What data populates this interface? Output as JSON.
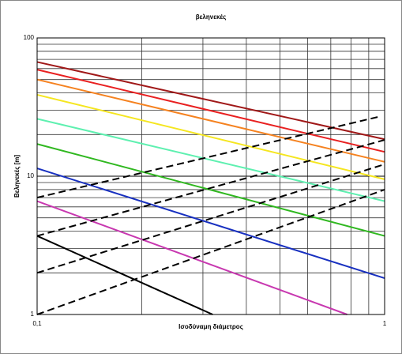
{
  "chart_data": {
    "type": "line",
    "title": "βεληνεκές",
    "xlabel": "Ισοδύναμη διάμετρος",
    "ylabel": "Βεληνεκές [m]",
    "xscale": "log",
    "yscale": "log",
    "grid": true,
    "xlim": [
      0.1,
      1
    ],
    "ylim": [
      1,
      100
    ],
    "xticks": [
      {
        "value": 0.1,
        "label": "0,1"
      },
      1
    ],
    "yticks": [
      1,
      10,
      100
    ],
    "xminorticks": [
      0.2,
      0.3,
      0.4,
      0.5,
      0.6,
      0.7,
      0.8,
      0.9
    ],
    "yminorticks": [
      2,
      3,
      4,
      5,
      6,
      7,
      8,
      9,
      20,
      30,
      40,
      50,
      60,
      70,
      80,
      90
    ],
    "series": [
      {
        "color": "#a01818",
        "x": [
          0.1,
          1
        ],
        "values": [
          67,
          18.5
        ]
      },
      {
        "color": "#e82020",
        "x": [
          0.1,
          1
        ],
        "values": [
          59,
          15
        ]
      },
      {
        "color": "#f58220",
        "x": [
          0.1,
          1
        ],
        "values": [
          50,
          12.7
        ]
      },
      {
        "color": "#f5e620",
        "x": [
          0.1,
          1
        ],
        "values": [
          38.8,
          9.5
        ]
      },
      {
        "color": "#5ef0b0",
        "x": [
          0.1,
          1
        ],
        "values": [
          26,
          6.6
        ]
      },
      {
        "color": "#30b820",
        "x": [
          0.1,
          1
        ],
        "values": [
          17.1,
          3.7
        ]
      },
      {
        "color": "#1830c0",
        "x": [
          0.1,
          1
        ],
        "values": [
          11.4,
          1.83
        ]
      },
      {
        "color": "#c838b0",
        "x": [
          0.1,
          0.78
        ],
        "values": [
          6.6,
          1
        ]
      },
      {
        "color": "#000000",
        "x": [
          0.1,
          0.32
        ],
        "values": [
          3.7,
          1
        ]
      },
      {
        "color": "#000000",
        "dash": true,
        "x": [
          0.1,
          0.955
        ],
        "values": [
          7,
          26.8
        ]
      },
      {
        "color": "#000000",
        "dash": true,
        "x": [
          0.1,
          1
        ],
        "values": [
          3.7,
          18.3
        ]
      },
      {
        "color": "#000000",
        "dash": true,
        "x": [
          0.1,
          1
        ],
        "values": [
          2,
          12.2
        ]
      },
      {
        "color": "#000000",
        "dash": true,
        "x": [
          0.1,
          1
        ],
        "values": [
          1,
          8
        ]
      }
    ]
  }
}
